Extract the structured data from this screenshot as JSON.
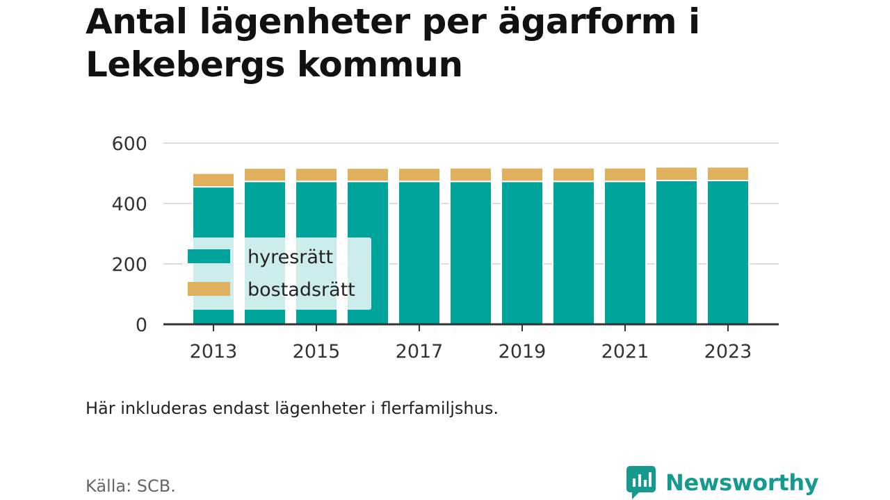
{
  "header": {
    "title": "Antal lägenheter per ägarform i Lekebergs kommun"
  },
  "chart_data": {
    "type": "bar",
    "stacked": true,
    "title": "Antal lägenheter per ägarform i Lekebergs kommun",
    "categories": [
      "2013",
      "2014",
      "2015",
      "2016",
      "2017",
      "2018",
      "2019",
      "2020",
      "2021",
      "2022",
      "2023"
    ],
    "x_tick_labels": [
      "2013",
      "2015",
      "2017",
      "2019",
      "2021",
      "2023"
    ],
    "y_ticks": [
      0,
      200,
      400,
      600
    ],
    "ylim": [
      0,
      600
    ],
    "grid": true,
    "legend_position": "left",
    "series": [
      {
        "name": "hyresrätt",
        "color": "#00a49a",
        "values": [
          455,
          473,
          473,
          473,
          473,
          473,
          473,
          473,
          473,
          476,
          476
        ]
      },
      {
        "name": "bostadsrätt",
        "color": "#dfb15f",
        "values": [
          45,
          44,
          44,
          44,
          44,
          45,
          45,
          45,
          45,
          45,
          45
        ]
      }
    ]
  },
  "footer": {
    "note": "Här inkluderas endast lägenheter i flerfamiljshus.",
    "source": "Källa: SCB.",
    "brand": "Newsworthy"
  }
}
